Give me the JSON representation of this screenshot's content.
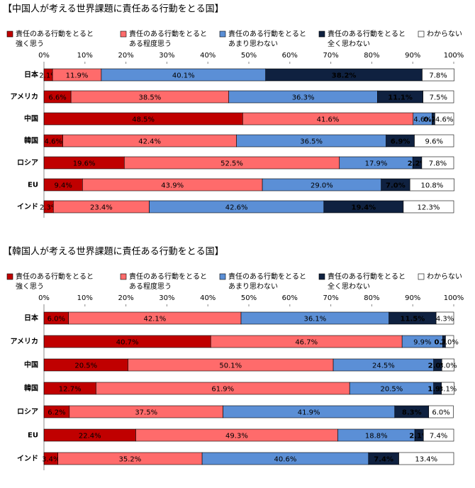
{
  "chart_data": [
    {
      "type": "stacked-bar-horizontal",
      "title": "【中国人が考える世界課題に責任ある行動をとる国】",
      "categories": [
        "日本",
        "アメリカ",
        "中国",
        "韓国",
        "ロシア",
        "EU",
        "インド"
      ],
      "xlim": [
        0,
        100
      ],
      "xticks": [
        {
          "value": 0,
          "label": "0%"
        },
        {
          "value": 10,
          "label": "10%"
        },
        {
          "value": 20,
          "label": "20%"
        },
        {
          "value": 30,
          "label": "30%"
        },
        {
          "value": 40,
          "label": "40%"
        },
        {
          "value": 50,
          "label": "50%"
        },
        {
          "value": 60,
          "label": "60%"
        },
        {
          "value": 70,
          "label": "70%"
        },
        {
          "value": 80,
          "label": "80%"
        },
        {
          "value": 90,
          "label": "90%"
        },
        {
          "value": 100,
          "label": "100%"
        }
      ],
      "series": [
        {
          "name": "責任のある行動をとると\n強く思う",
          "color": "#c00000",
          "values": [
            2.1,
            6.6,
            48.5,
            4.6,
            19.6,
            9.4,
            2.3
          ],
          "value_labels": [
            "2.1%",
            "6.6%",
            "48.5%",
            "4.6%",
            "19.6%",
            "9.4%",
            "2.3%"
          ]
        },
        {
          "name": "責任のある行動をとると\nある程度思う",
          "color": "#ff6b6b",
          "values": [
            11.9,
            38.5,
            41.6,
            42.4,
            52.5,
            43.9,
            23.4
          ],
          "value_labels": [
            "11.9%",
            "38.5%",
            "41.6%",
            "42.4%",
            "52.5%",
            "43.9%",
            "23.4%"
          ]
        },
        {
          "name": "責任のある行動をとると\nあまり思わない",
          "color": "#5b8fd6",
          "values": [
            40.1,
            36.3,
            4.6,
            36.5,
            17.9,
            29.0,
            42.6
          ],
          "value_labels": [
            "40.1%",
            "36.3%",
            "4.6%",
            "36.5%",
            "17.9%",
            "29.0%",
            "42.6%"
          ]
        },
        {
          "name": "責任のある行動をとると\n全く思わない",
          "color": "#0f2140",
          "values": [
            38.2,
            11.1,
            0.7,
            6.9,
            2.2,
            7.0,
            19.4
          ],
          "value_labels": [
            "38.2%",
            "11.1%",
            "0.7%",
            "6.9%",
            "2.2%",
            "7.0%",
            "19.4%"
          ]
        },
        {
          "name": "わからない",
          "color": "#ffffff",
          "values": [
            7.8,
            7.5,
            4.6,
            9.6,
            7.8,
            10.8,
            12.3
          ],
          "value_labels": [
            "7.8%",
            "7.5%",
            "4.6%",
            "9.6%",
            "7.8%",
            "10.8%",
            "12.3%"
          ]
        }
      ]
    },
    {
      "type": "stacked-bar-horizontal",
      "title": "【韓国人が考える世界課題に責任ある行動をとる国】",
      "categories": [
        "日本",
        "アメリカ",
        "中国",
        "韓国",
        "ロシア",
        "EU",
        "インド"
      ],
      "xlim": [
        0,
        100
      ],
      "xticks": [
        {
          "value": 0,
          "label": "0%"
        },
        {
          "value": 10,
          "label": "10%"
        },
        {
          "value": 20,
          "label": "20%"
        },
        {
          "value": 30,
          "label": "30%"
        },
        {
          "value": 40,
          "label": "40%"
        },
        {
          "value": 50,
          "label": "50%"
        },
        {
          "value": 60,
          "label": "60%"
        },
        {
          "value": 70,
          "label": "70%"
        },
        {
          "value": 80,
          "label": "80%"
        },
        {
          "value": 90,
          "label": "90%"
        },
        {
          "value": 100,
          "label": "100%"
        }
      ],
      "series": [
        {
          "name": "責任のある行動をとると\n強く思う",
          "color": "#c00000",
          "values": [
            6.0,
            40.7,
            20.5,
            12.7,
            6.2,
            22.4,
            3.4
          ],
          "value_labels": [
            "6.0%",
            "40.7%",
            "20.5%",
            "12.7%",
            "6.2%",
            "22.4%",
            "3.4%"
          ]
        },
        {
          "name": "責任のある行動をとると\nある程度思う",
          "color": "#ff6b6b",
          "values": [
            42.1,
            46.7,
            50.1,
            61.9,
            37.5,
            49.3,
            35.2
          ],
          "value_labels": [
            "42.1%",
            "46.7%",
            "50.1%",
            "61.9%",
            "37.5%",
            "49.3%",
            "35.2%"
          ]
        },
        {
          "name": "責任のある行動をとると\nあまり思わない",
          "color": "#5b8fd6",
          "values": [
            36.1,
            9.9,
            24.5,
            20.5,
            41.9,
            18.8,
            40.6
          ],
          "value_labels": [
            "36.1%",
            "9.9%",
            "24.5%",
            "20.5%",
            "41.9%",
            "18.8%",
            "40.6%"
          ]
        },
        {
          "name": "責任のある行動をとると\n全く思わない",
          "color": "#0f2140",
          "values": [
            11.5,
            0.7,
            2.0,
            1.9,
            8.3,
            2.1,
            7.4
          ],
          "value_labels": [
            "11.5%",
            "0.7%",
            "2.0%",
            "1.9%",
            "8.3%",
            "2.1%",
            "7.4%"
          ]
        },
        {
          "name": "わからない",
          "color": "#ffffff",
          "values": [
            4.3,
            2.0,
            3.0,
            3.1,
            6.0,
            7.4,
            13.4
          ],
          "value_labels": [
            "4.3%",
            "2.0%",
            "3.0%",
            "3.1%",
            "6.0%",
            "7.4%",
            "13.4%"
          ]
        }
      ]
    }
  ]
}
